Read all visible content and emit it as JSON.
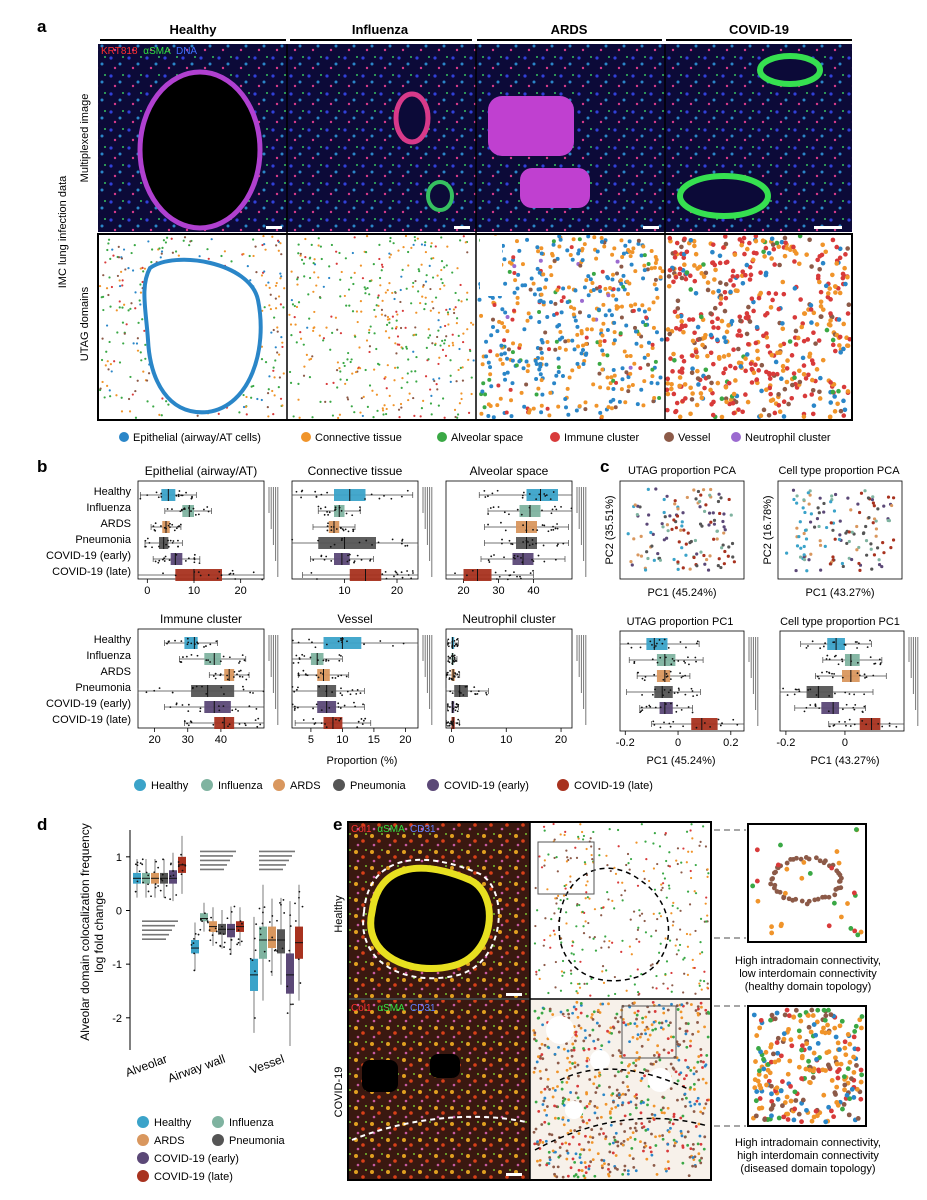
{
  "panel_letters": {
    "a": "a",
    "b": "b",
    "c": "c",
    "d": "d",
    "e": "e"
  },
  "colors": {
    "epithelial": "#2a86c8",
    "connective": "#f0942a",
    "alveolar": "#3aa845",
    "immune": "#d83a3a",
    "vessel": "#8c5a48",
    "neutrophil": "#9b6ad0",
    "healthy": "#3ba3c9",
    "influenza": "#7fb3a0",
    "ards": "#d9975e",
    "pneumonia": "#555555",
    "covid_early": "#5b4877",
    "covid_late": "#a8321f"
  },
  "panel_a": {
    "conditions": [
      "Healthy",
      "Influenza",
      "ARDS",
      "COVID-19"
    ],
    "super_label": "IMC lung infection data",
    "row_labels": [
      "Multiplexed image",
      "UTAG domains"
    ],
    "stain_label": {
      "krt": "KRT818",
      "asma": "αSMA",
      "dna": "DNA"
    },
    "legend": [
      "Epithelial (airway/AT cells)",
      "Connective tissue",
      "Alveolar space",
      "Immune cluster",
      "Vessel",
      "Neutrophil cluster"
    ],
    "legend_icons": [
      "circle-icon",
      "circle-icon",
      "circle-icon",
      "circle-icon",
      "circle-icon",
      "circle-icon"
    ]
  },
  "panel_b": {
    "groups": [
      "Healthy",
      "Influenza",
      "ARDS",
      "Pneumonia",
      "COVID-19 (early)",
      "COVID-19 (late)"
    ],
    "xlabel": "Proportion (%)",
    "legend": [
      "Healthy",
      "Influenza",
      "ARDS",
      "Pneumonia",
      "COVID-19 (early)",
      "COVID-19 (late)"
    ]
  },
  "panel_c": {
    "pca_titles": [
      "UTAG proportion PCA",
      "Cell type proportion PCA"
    ],
    "pca_ylabels": [
      "PC2 (35.51%)",
      "PC2 (16.78%)"
    ],
    "pca_xlabels": [
      "PC1 (45.24%)",
      "PC1 (43.27%)"
    ],
    "box_titles": [
      "UTAG proportion PC1",
      "Cell type proportion PC1"
    ],
    "box_xlabels": [
      "PC1 (45.24%)",
      "PC1 (43.27%)"
    ]
  },
  "panel_d": {
    "ylabel_line1": "Alveolar domain colocalization frequency",
    "ylabel_line2": "log fold change",
    "legend": [
      "Healthy",
      "Influenza",
      "ARDS",
      "Pneumonia",
      "COVID-19 (early)",
      "COVID-19 (late)"
    ]
  },
  "panel_e": {
    "row_labels": [
      "Healthy",
      "COVID-19"
    ],
    "stain_label": {
      "col": "Col1",
      "asma": "αSMA",
      "cd31": "CD31"
    },
    "caption_healthy": [
      "High intradomain connectivity,",
      "low interdomain connectivity",
      "(healthy domain topology)"
    ],
    "caption_covid": [
      "High intradomain connectivity,",
      "high interdomain connectivity",
      "(diseased domain topology)"
    ]
  },
  "chart_data": [
    {
      "type": "box",
      "title": "Epithelial (airway/AT)",
      "categories": [
        "Healthy",
        "Influenza",
        "ARDS",
        "Pneumonia",
        "COVID-19 (early)",
        "COVID-19 (late)"
      ],
      "xlim": [
        -2,
        25
      ],
      "xticks": [
        0,
        10,
        20
      ],
      "boxes": [
        [
          3,
          4.5,
          6
        ],
        [
          7.5,
          9,
          10
        ],
        [
          3.2,
          4,
          4.8
        ],
        [
          2.5,
          3.5,
          4.5
        ],
        [
          5,
          6,
          7.5
        ],
        [
          6,
          10,
          16
        ]
      ]
    },
    {
      "type": "box",
      "title": "Connective tissue",
      "categories": [
        "Healthy",
        "Influenza",
        "ARDS",
        "Pneumonia",
        "COVID-19 (early)",
        "COVID-19 (late)"
      ],
      "xlim": [
        0,
        24
      ],
      "xticks": [
        10,
        20
      ],
      "boxes": [
        [
          8,
          11,
          14
        ],
        [
          8,
          9,
          10
        ],
        [
          7,
          8,
          9
        ],
        [
          5,
          10,
          16
        ],
        [
          8,
          9.5,
          11
        ],
        [
          11,
          14,
          17
        ]
      ]
    },
    {
      "type": "box",
      "title": "Alveolar space",
      "categories": [
        "Healthy",
        "Influenza",
        "ARDS",
        "Pneumonia",
        "COVID-19 (early)",
        "COVID-19 (late)"
      ],
      "xlim": [
        15,
        51
      ],
      "xticks": [
        20,
        30,
        40
      ],
      "boxes": [
        [
          38,
          42,
          47
        ],
        [
          36,
          39,
          42
        ],
        [
          35,
          38,
          41
        ],
        [
          35,
          38,
          41
        ],
        [
          34,
          37,
          40
        ],
        [
          20,
          24,
          28
        ]
      ]
    },
    {
      "type": "box",
      "title": "Immune cluster",
      "categories": [
        "Healthy",
        "Influenza",
        "ARDS",
        "Pneumonia",
        "COVID-19 (early)",
        "COVID-19 (late)"
      ],
      "xlim": [
        15,
        53
      ],
      "xticks": [
        20,
        30,
        40
      ],
      "boxes": [
        [
          29,
          32,
          33
        ],
        [
          35,
          38,
          40
        ],
        [
          41,
          42.5,
          44
        ],
        [
          31,
          36,
          44
        ],
        [
          35,
          38,
          43
        ],
        [
          38,
          41,
          44
        ]
      ]
    },
    {
      "type": "box",
      "title": "Vessel",
      "categories": [
        "Healthy",
        "Influenza",
        "ARDS",
        "Pneumonia",
        "COVID-19 (early)",
        "COVID-19 (late)"
      ],
      "xlim": [
        2,
        22
      ],
      "xticks": [
        5,
        10,
        15,
        20
      ],
      "boxes": [
        [
          7,
          10,
          13
        ],
        [
          5,
          6,
          7
        ],
        [
          6,
          7,
          8
        ],
        [
          6,
          7.5,
          9
        ],
        [
          6,
          7.5,
          9
        ],
        [
          7,
          8.5,
          10
        ]
      ]
    },
    {
      "type": "box",
      "title": "Neutrophil cluster",
      "categories": [
        "Healthy",
        "Influenza",
        "ARDS",
        "Pneumonia",
        "COVID-19 (early)",
        "COVID-19 (late)"
      ],
      "xlim": [
        -1,
        22
      ],
      "xticks": [
        0,
        10,
        20
      ],
      "boxes": [
        [
          0,
          0.2,
          0.5
        ],
        [
          0,
          0.2,
          0.4
        ],
        [
          0,
          0.3,
          0.6
        ],
        [
          0.5,
          1.5,
          3
        ],
        [
          0,
          0.2,
          0.5
        ],
        [
          0,
          0.3,
          0.6
        ]
      ]
    },
    {
      "type": "box",
      "title": "UTAG proportion PC1",
      "categories": [
        "Healthy",
        "Influenza",
        "ARDS",
        "Pneumonia",
        "COVID-19 (early)",
        "COVID-19 (late)"
      ],
      "xlim": [
        -0.22,
        0.25
      ],
      "xticks": [
        -0.2,
        0,
        0.2
      ],
      "boxes": [
        [
          -0.12,
          -0.09,
          -0.04
        ],
        [
          -0.08,
          -0.05,
          -0.01
        ],
        [
          -0.08,
          -0.05,
          -0.03
        ],
        [
          -0.09,
          -0.06,
          -0.02
        ],
        [
          -0.07,
          -0.05,
          -0.02
        ],
        [
          0.05,
          0.09,
          0.15
        ]
      ]
    },
    {
      "type": "box",
      "title": "Cell type proportion PC1",
      "categories": [
        "Healthy",
        "Influenza",
        "ARDS",
        "Pneumonia",
        "COVID-19 (early)",
        "COVID-19 (late)"
      ],
      "xlim": [
        -0.22,
        0.2
      ],
      "xticks": [
        -0.2,
        0
      ],
      "boxes": [
        [
          -0.06,
          -0.03,
          0
        ],
        [
          0,
          0.02,
          0.05
        ],
        [
          -0.01,
          0.02,
          0.05
        ],
        [
          -0.13,
          -0.09,
          -0.04
        ],
        [
          -0.08,
          -0.04,
          -0.02
        ],
        [
          0.05,
          0.09,
          0.12
        ]
      ]
    },
    {
      "type": "box",
      "title": "",
      "ylabel": "Alveolar domain colocalization frequency log fold change",
      "categories": [
        "Alveolar",
        "Airway wall",
        "Vessel"
      ],
      "series": [
        "Healthy",
        "Influenza",
        "ARDS",
        "Pneumonia",
        "COVID-19 (early)",
        "COVID-19 (late)"
      ],
      "ylim": [
        -2.6,
        1.5
      ],
      "yticks": [
        1,
        0,
        -1,
        -2
      ],
      "boxes": [
        [
          [
            0.5,
            0.6,
            0.7
          ],
          [
            0.5,
            0.6,
            0.7
          ],
          [
            0.5,
            0.6,
            0.7
          ],
          [
            0.5,
            0.6,
            0.7
          ],
          [
            0.5,
            0.6,
            0.75
          ],
          [
            0.7,
            0.85,
            1.0
          ]
        ],
        [
          [
            -0.8,
            -0.7,
            -0.55
          ],
          [
            -0.2,
            -0.15,
            -0.05
          ],
          [
            -0.4,
            -0.3,
            -0.2
          ],
          [
            -0.45,
            -0.35,
            -0.25
          ],
          [
            -0.5,
            -0.35,
            -0.25
          ],
          [
            -0.4,
            -0.3,
            -0.2
          ]
        ],
        [
          [
            -1.5,
            -1.2,
            -0.9
          ],
          [
            -0.9,
            -0.55,
            -0.3
          ],
          [
            -0.7,
            -0.55,
            -0.3
          ],
          [
            -0.8,
            -0.55,
            -0.35
          ],
          [
            -1.55,
            -1.2,
            -0.8
          ],
          [
            -0.9,
            -0.6,
            -0.3
          ]
        ]
      ]
    }
  ]
}
